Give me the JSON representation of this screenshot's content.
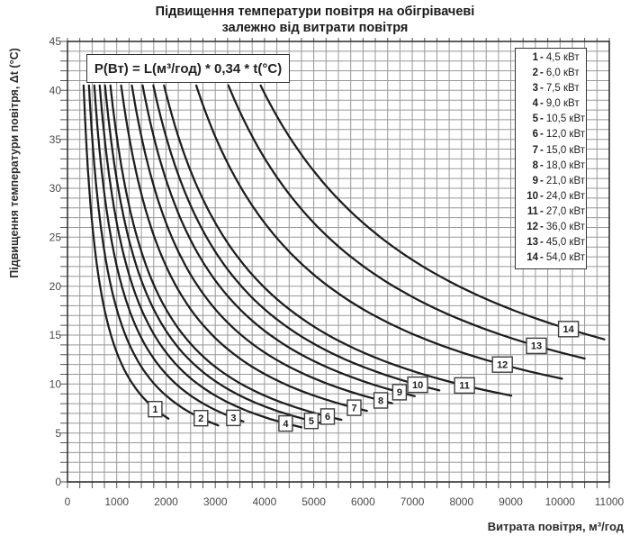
{
  "title": {
    "line1": "Підвищення температури повітря на обігрівачеві",
    "line2": "залежно від витрати повітря"
  },
  "formula": "P(Вт) = L(м³/год) * 0,34 * t(°C)",
  "axes": {
    "x": {
      "label": "Витрата повітря, м³/год",
      "min": 0,
      "max": 11000,
      "major_step": 1000,
      "minor_step": 250,
      "ticks": [
        0,
        1000,
        2000,
        3000,
        4000,
        5000,
        6000,
        7000,
        8000,
        9000,
        10000,
        11000
      ]
    },
    "y": {
      "label": "Підвищення температури повітря, Δt (°C)",
      "min": 0,
      "max": 45,
      "major_step": 5,
      "minor_step": 1,
      "ticks": [
        0,
        5,
        10,
        15,
        20,
        25,
        30,
        35,
        40,
        45
      ]
    }
  },
  "legend": {
    "items": [
      {
        "num": "1",
        "value": "4,5 кВт"
      },
      {
        "num": "2",
        "value": "6,0 кВт"
      },
      {
        "num": "3",
        "value": "7,5 кВт"
      },
      {
        "num": "4",
        "value": "9,0 кВт"
      },
      {
        "num": "5",
        "value": "10,5 кВт"
      },
      {
        "num": "6",
        "value": "12,0 кВт"
      },
      {
        "num": "7",
        "value": "15,0 кВт"
      },
      {
        "num": "8",
        "value": "18,0 кВт"
      },
      {
        "num": "9",
        "value": "21,0 кВт"
      },
      {
        "num": "10",
        "value": "24,0 кВт"
      },
      {
        "num": "11",
        "value": "27,0 кВт"
      },
      {
        "num": "12",
        "value": "36,0 кВт"
      },
      {
        "num": "13",
        "value": "45,0 кВт"
      },
      {
        "num": "14",
        "value": "54,0 кВт"
      }
    ]
  },
  "chart_data": {
    "type": "line",
    "title": "Підвищення температури повітря на обігрівачеві залежно від витрати повітря",
    "xlabel": "Витрата повітря, м³/год",
    "ylabel": "Підвищення температури повітря, Δt (°C)",
    "xlim": [
      0,
      11000
    ],
    "ylim": [
      0,
      45
    ],
    "grid": true,
    "legend_position": "top-right",
    "relation": "t(°C) = P(кВт)*1000 / (0,34 * L(м³/год))",
    "formula_constant": 0.34,
    "t_start": 40.5,
    "series": [
      {
        "label": "1",
        "power_kw": 4.5,
        "l_start": 327,
        "l_end": 2050,
        "label_at_l": 1780
      },
      {
        "label": "2",
        "power_kw": 6.0,
        "l_start": 436,
        "l_end": 3060,
        "label_at_l": 2710
      },
      {
        "label": "3",
        "power_kw": 7.5,
        "l_start": 545,
        "l_end": 3570,
        "label_at_l": 3370
      },
      {
        "label": "4",
        "power_kw": 9.0,
        "l_start": 654,
        "l_end": 4750,
        "label_at_l": 4430
      },
      {
        "label": "5",
        "power_kw": 10.5,
        "l_start": 763,
        "l_end": 5200,
        "label_at_l": 4950
      },
      {
        "label": "6",
        "power_kw": 12.0,
        "l_start": 872,
        "l_end": 5560,
        "label_at_l": 5280
      },
      {
        "label": "7",
        "power_kw": 15.0,
        "l_start": 1089,
        "l_end": 6080,
        "label_at_l": 5820
      },
      {
        "label": "8",
        "power_kw": 18.0,
        "l_start": 1307,
        "l_end": 6590,
        "label_at_l": 6360
      },
      {
        "label": "9",
        "power_kw": 21.0,
        "l_start": 1525,
        "l_end": 7050,
        "label_at_l": 6740
      },
      {
        "label": "10",
        "power_kw": 24.0,
        "l_start": 1743,
        "l_end": 7550,
        "label_at_l": 7110
      },
      {
        "label": "11",
        "power_kw": 27.0,
        "l_start": 1961,
        "l_end": 9010,
        "label_at_l": 8060
      },
      {
        "label": "12",
        "power_kw": 36.0,
        "l_start": 2615,
        "l_end": 10040,
        "label_at_l": 8830
      },
      {
        "label": "13",
        "power_kw": 45.0,
        "l_start": 3268,
        "l_end": 10500,
        "label_at_l": 9520
      },
      {
        "label": "14",
        "power_kw": 54.0,
        "l_start": 3922,
        "l_end": 10900,
        "label_at_l": 10170
      }
    ]
  },
  "colors": {
    "curve": "#1d1d1d",
    "grid": "#989898",
    "frame": "#333333",
    "tick": "#555555",
    "tick_label": "#4a4a4a",
    "background": "#ffffff"
  }
}
